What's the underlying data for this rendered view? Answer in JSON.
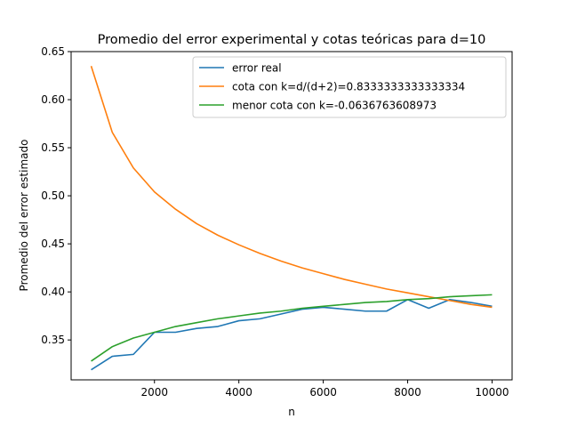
{
  "chart_data": {
    "type": "line",
    "title": "Promedio del error experimental y cotas teóricas para d=10",
    "xlabel": "n",
    "ylabel": "Promedio del error estimado",
    "xlim": [
      25,
      10475
    ],
    "ylim": [
      0.3085,
      0.65
    ],
    "xticks": [
      2000,
      4000,
      6000,
      8000,
      10000
    ],
    "xtick_labels": [
      "2000",
      "4000",
      "6000",
      "8000",
      "10000"
    ],
    "yticks": [
      0.35,
      0.4,
      0.45,
      0.5,
      0.55,
      0.6,
      0.65
    ],
    "ytick_labels": [
      "0.35",
      "0.40",
      "0.45",
      "0.50",
      "0.55",
      "0.60",
      "0.65"
    ],
    "grid": false,
    "legend_position": "top-right",
    "x": [
      500,
      1000,
      1500,
      2000,
      2500,
      3000,
      3500,
      4000,
      4500,
      5000,
      5500,
      6000,
      6500,
      7000,
      7500,
      8000,
      8500,
      9000,
      9500,
      10000
    ],
    "series": [
      {
        "name": "error real",
        "color": "#1f77b4",
        "values": [
          0.319,
          0.333,
          0.335,
          0.358,
          0.358,
          0.362,
          0.364,
          0.37,
          0.372,
          0.377,
          0.382,
          0.384,
          0.382,
          0.38,
          0.38,
          0.392,
          0.383,
          0.392,
          0.389,
          0.385
        ]
      },
      {
        "name": "cota con k=d/(d+2)=0.8333333333333334",
        "color": "#ff7f0e",
        "values": [
          0.635,
          0.566,
          0.529,
          0.504,
          0.486,
          0.471,
          0.459,
          0.449,
          0.44,
          0.432,
          0.425,
          0.419,
          0.413,
          0.408,
          0.403,
          0.399,
          0.395,
          0.391,
          0.387,
          0.384
        ]
      },
      {
        "name": "menor cota con k=-0.0636763608973",
        "color": "#2ca02c",
        "values": [
          0.328,
          0.343,
          0.352,
          0.358,
          0.364,
          0.368,
          0.372,
          0.375,
          0.378,
          0.38,
          0.383,
          0.385,
          0.387,
          0.389,
          0.39,
          0.392,
          0.393,
          0.395,
          0.396,
          0.397
        ]
      }
    ]
  }
}
